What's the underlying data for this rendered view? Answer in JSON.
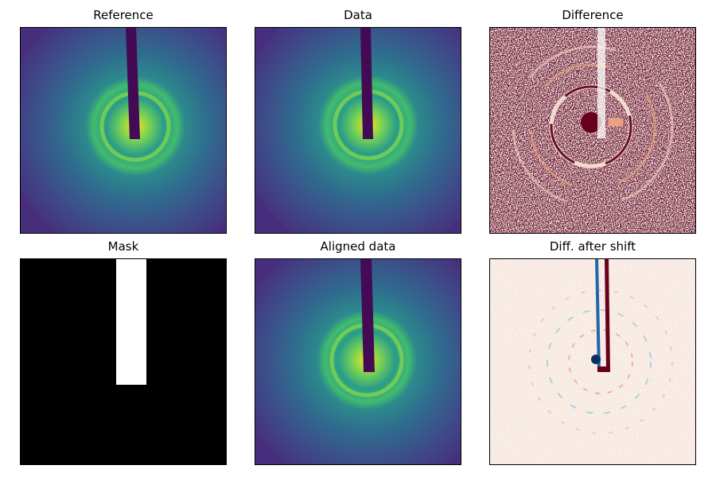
{
  "chart_data": [
    {
      "type": "heatmap",
      "title": "Reference",
      "colormap": "viridis",
      "content": "diffraction-rings",
      "beamstop": "top-center",
      "axes": "hidden"
    },
    {
      "type": "heatmap",
      "title": "Data",
      "colormap": "viridis",
      "content": "diffraction-rings",
      "beamstop": "top-center",
      "axes": "hidden"
    },
    {
      "type": "heatmap",
      "title": "Difference",
      "colormap": "RdBu_r",
      "content": "noisy-difference",
      "axes": "hidden"
    },
    {
      "type": "heatmap",
      "title": "Mask",
      "colormap": "gray",
      "content": "binary-mask",
      "axes": "hidden"
    },
    {
      "type": "heatmap",
      "title": "Aligned data",
      "colormap": "viridis",
      "content": "diffraction-rings",
      "beamstop": "top-center",
      "axes": "hidden"
    },
    {
      "type": "heatmap",
      "title": "Diff. after shift",
      "colormap": "RdBu_r",
      "content": "residual-difference",
      "axes": "hidden"
    }
  ]
}
